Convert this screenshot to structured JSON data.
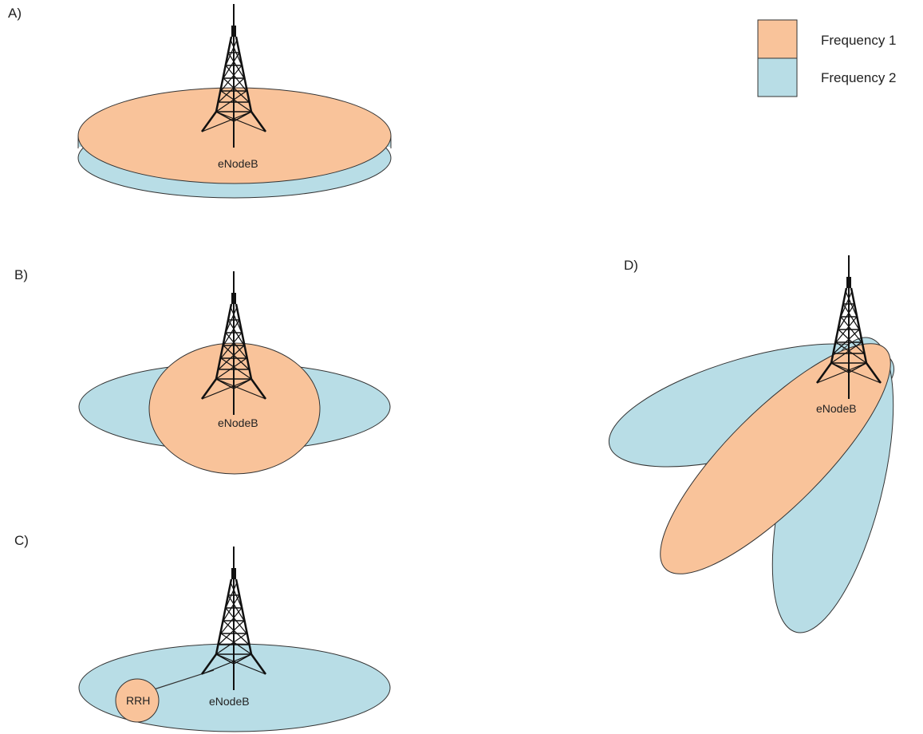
{
  "panels": {
    "a": {
      "label": "A)",
      "node_label": "eNodeB"
    },
    "b": {
      "label": "B)",
      "node_label": "eNodeB"
    },
    "c": {
      "label": "C)",
      "node_label": "eNodeB",
      "rrh_label": "RRH"
    },
    "d": {
      "label": "D)",
      "node_label": "eNodeB"
    }
  },
  "legend": {
    "items": [
      {
        "label": "Frequency 1",
        "color": "#f9c39a"
      },
      {
        "label": "Frequency 2",
        "color": "#b8dde6"
      }
    ]
  },
  "colors": {
    "frequency_1": "#f9c39a",
    "frequency_2": "#b8dde6",
    "outline": "#333333",
    "tower": "#111111"
  },
  "icons": {
    "tower": "lattice-tower-icon"
  }
}
